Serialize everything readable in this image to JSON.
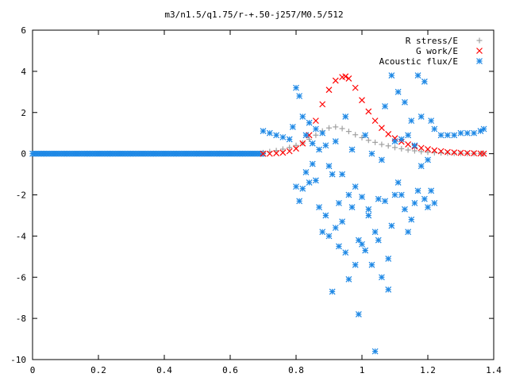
{
  "chart_data": {
    "type": "scatter",
    "title": "m3/n1.5/q1.75/r-+.50-j257/M0.5/512",
    "xlabel": "",
    "ylabel": "",
    "xlim": [
      0,
      1.4
    ],
    "ylim": [
      -10,
      6
    ],
    "x_ticks": [
      0,
      0.2,
      0.4,
      0.6,
      0.8,
      1,
      1.2,
      1.4
    ],
    "x_tick_labels": [
      "0",
      "0.2",
      "0.4",
      "0.6",
      "0.8",
      "1",
      "1.2",
      "1.4"
    ],
    "y_ticks": [
      -10,
      -8,
      -6,
      -4,
      -2,
      0,
      2,
      4,
      6
    ],
    "y_tick_labels": [
      "-10",
      "-8",
      "-6",
      "-4",
      "-2",
      "0",
      "2",
      "4",
      "6"
    ],
    "grid": false,
    "legend_position": "top-right",
    "series": [
      {
        "name": "R stress/E",
        "marker": "plus",
        "color": "#a0a0a0",
        "x": [
          0.7,
          0.72,
          0.74,
          0.76,
          0.78,
          0.8,
          0.82,
          0.84,
          0.86,
          0.88,
          0.9,
          0.92,
          0.94,
          0.96,
          0.98,
          1.0,
          1.02,
          1.04,
          1.06,
          1.08,
          1.1,
          1.12,
          1.14,
          1.16,
          1.18,
          1.2,
          1.22,
          1.24,
          1.26,
          1.28,
          1.3,
          1.32,
          1.34,
          1.36,
          1.37
        ],
        "y": [
          0.05,
          0.1,
          0.15,
          0.22,
          0.3,
          0.4,
          0.52,
          0.7,
          0.9,
          1.1,
          1.25,
          1.3,
          1.22,
          1.08,
          0.92,
          0.78,
          0.65,
          0.55,
          0.45,
          0.38,
          0.3,
          0.24,
          0.18,
          0.14,
          0.1,
          0.07,
          0.05,
          0.04,
          0.03,
          0.02,
          0.02,
          0.01,
          0.01,
          0.01,
          0.01
        ]
      },
      {
        "name": "G work/E",
        "marker": "cross",
        "color": "#ff0000",
        "x": [
          0.7,
          0.72,
          0.74,
          0.76,
          0.78,
          0.8,
          0.82,
          0.84,
          0.86,
          0.88,
          0.9,
          0.92,
          0.94,
          0.95,
          0.96,
          0.98,
          1.0,
          1.02,
          1.04,
          1.06,
          1.08,
          1.1,
          1.12,
          1.14,
          1.16,
          1.18,
          1.2,
          1.22,
          1.24,
          1.26,
          1.28,
          1.3,
          1.32,
          1.34,
          1.36,
          1.37
        ],
        "y": [
          0.0,
          0.0,
          0.02,
          0.05,
          0.12,
          0.25,
          0.5,
          0.9,
          1.6,
          2.4,
          3.1,
          3.55,
          3.72,
          3.75,
          3.65,
          3.2,
          2.6,
          2.05,
          1.6,
          1.25,
          0.95,
          0.75,
          0.58,
          0.45,
          0.35,
          0.28,
          0.22,
          0.16,
          0.12,
          0.08,
          0.06,
          0.04,
          0.03,
          0.02,
          0.01,
          0.0
        ]
      },
      {
        "name": "Acoustic flux/E",
        "marker": "star",
        "color": "#1e88e5",
        "x": [
          0.7,
          0.72,
          0.74,
          0.76,
          0.78,
          0.79,
          0.8,
          0.8,
          0.81,
          0.81,
          0.82,
          0.82,
          0.83,
          0.83,
          0.84,
          0.84,
          0.85,
          0.85,
          0.86,
          0.86,
          0.87,
          0.87,
          0.88,
          0.88,
          0.89,
          0.89,
          0.9,
          0.9,
          0.91,
          0.91,
          0.92,
          0.92,
          0.93,
          0.93,
          0.94,
          0.94,
          0.95,
          0.95,
          0.96,
          0.96,
          0.97,
          0.97,
          0.98,
          0.98,
          0.99,
          0.99,
          1.0,
          1.0,
          1.01,
          1.01,
          1.02,
          1.02,
          1.03,
          1.03,
          1.04,
          1.04,
          1.05,
          1.05,
          1.06,
          1.06,
          1.07,
          1.07,
          1.08,
          1.08,
          1.09,
          1.09,
          1.1,
          1.1,
          1.11,
          1.11,
          1.12,
          1.12,
          1.13,
          1.13,
          1.14,
          1.14,
          1.15,
          1.15,
          1.16,
          1.16,
          1.17,
          1.17,
          1.18,
          1.18,
          1.19,
          1.19,
          1.2,
          1.2,
          1.21,
          1.21,
          1.22,
          1.22,
          1.24,
          1.26,
          1.28,
          1.3,
          1.32,
          1.34,
          1.36,
          1.37
        ],
        "y": [
          1.1,
          1.0,
          0.9,
          0.8,
          0.7,
          1.3,
          3.2,
          -1.6,
          2.8,
          -2.3,
          1.8,
          -1.7,
          0.9,
          -0.9,
          1.5,
          -1.4,
          0.5,
          -0.5,
          1.2,
          -1.3,
          0.2,
          -2.6,
          1.0,
          -3.8,
          0.4,
          -3.0,
          -0.6,
          -4.0,
          -1.0,
          -6.7,
          -3.6,
          0.6,
          -2.4,
          -4.5,
          -3.3,
          -1.0,
          -4.8,
          1.8,
          -2.0,
          -6.1,
          -2.6,
          0.2,
          -5.4,
          -1.6,
          -4.2,
          -7.8,
          -2.1,
          -4.4,
          0.9,
          -4.7,
          -2.7,
          -3.0,
          0.0,
          -5.4,
          -9.6,
          -3.8,
          -2.2,
          -4.2,
          -0.3,
          -6.0,
          2.3,
          -2.3,
          -5.1,
          -6.6,
          3.8,
          -3.5,
          0.6,
          -2.0,
          3.0,
          -1.4,
          0.7,
          -2.0,
          2.5,
          -2.7,
          0.9,
          -3.8,
          1.6,
          -3.2,
          0.4,
          -2.4,
          3.8,
          -1.8,
          1.8,
          -0.6,
          3.5,
          -2.2,
          -0.3,
          -2.6,
          1.6,
          -1.8,
          1.2,
          -2.4,
          0.9,
          0.9,
          0.9,
          1.0,
          1.0,
          1.0,
          1.1,
          1.2
        ]
      }
    ],
    "flat_series": {
      "name": "Acoustic flux/E",
      "x_start": 0.0,
      "x_end": 0.7,
      "y": 0.0
    }
  }
}
